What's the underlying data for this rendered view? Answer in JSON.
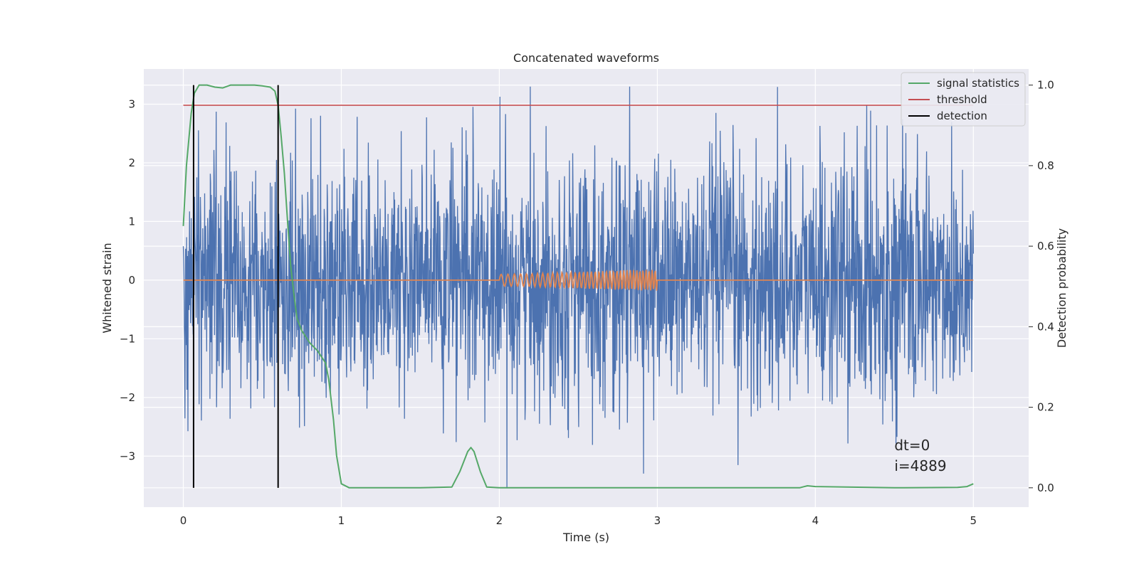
{
  "chart_data": {
    "type": "line",
    "title": "Concatenated waveforms",
    "xlabel": "Time (s)",
    "ylabel": "Whitened strain",
    "y2label": "Detection probability",
    "xlim": [
      -0.25,
      5.35
    ],
    "ylim": [
      -3.87,
      3.6
    ],
    "y2lim": [
      -0.048,
      1.04
    ],
    "xticks": [
      0,
      1,
      2,
      3,
      4,
      5
    ],
    "yticks": [
      -3,
      -2,
      -1,
      0,
      1,
      2,
      3
    ],
    "y2ticks": [
      0.0,
      0.2,
      0.4,
      0.6,
      0.8,
      1.0
    ],
    "xtick_labels": [
      "0",
      "1",
      "2",
      "3",
      "4",
      "5"
    ],
    "ytick_labels": [
      "−3",
      "−2",
      "−1",
      "0",
      "1",
      "2",
      "3"
    ],
    "y2tick_labels": [
      "0.0",
      "0.2",
      "0.4",
      "0.6",
      "0.8",
      "1.0"
    ],
    "grid": true,
    "legend_position": "top-right",
    "legend": [
      {
        "label": "signal statistics",
        "color": "#55a868"
      },
      {
        "label": "threshold",
        "color": "#c44e52"
      },
      {
        "label": "detection",
        "color": "#000000"
      }
    ],
    "series": [
      {
        "key": "noise",
        "axis": "left",
        "color": "#4c72b0",
        "x_range": [
          0,
          5
        ],
        "amplitude_range": [
          -3.55,
          3.3
        ]
      },
      {
        "key": "injection",
        "axis": "left",
        "color": "#dd8452",
        "x": [
          0,
          2,
          2.2,
          2.4,
          2.6,
          2.8,
          3,
          5
        ],
        "amplitude": [
          0,
          0.1,
          0.11,
          0.13,
          0.15,
          0.17,
          0.18,
          0
        ]
      },
      {
        "key": "signal_statistics",
        "axis": "right",
        "color": "#55a868",
        "x": [
          0,
          0.02,
          0.05,
          0.07,
          0.1,
          0.15,
          0.2,
          0.25,
          0.3,
          0.35,
          0.4,
          0.45,
          0.5,
          0.55,
          0.58,
          0.6,
          0.62,
          0.64,
          0.66,
          0.68,
          0.7,
          0.72,
          0.75,
          0.8,
          0.85,
          0.9,
          0.92,
          0.95,
          0.97,
          1.0,
          1.05,
          1.1,
          1.5,
          1.7,
          1.75,
          1.8,
          1.82,
          1.84,
          1.88,
          1.92,
          2.0,
          3.0,
          3.9,
          3.95,
          4.0,
          4.5,
          4.9,
          4.96,
          5.0
        ],
        "values": [
          0.65,
          0.8,
          0.93,
          0.98,
          1.0,
          1.0,
          0.995,
          0.993,
          1.0,
          1.0,
          1.0,
          1.0,
          0.998,
          0.995,
          0.985,
          0.95,
          0.87,
          0.78,
          0.66,
          0.55,
          0.48,
          0.42,
          0.39,
          0.36,
          0.34,
          0.31,
          0.27,
          0.17,
          0.08,
          0.01,
          0.0,
          0.0,
          0.0,
          0.002,
          0.04,
          0.09,
          0.1,
          0.09,
          0.04,
          0.002,
          0.0,
          0.0,
          0.0,
          0.005,
          0.003,
          0.0,
          0.001,
          0.003,
          0.01
        ]
      },
      {
        "key": "threshold",
        "axis": "right",
        "color": "#c44e52",
        "x": [
          0,
          5
        ],
        "values": [
          0.95,
          0.95
        ]
      },
      {
        "key": "detections",
        "axis": "right",
        "color": "#000000",
        "x": [
          0.065,
          0.6
        ],
        "y_range": [
          0,
          1.0
        ]
      }
    ],
    "annotations": [
      {
        "key": "dt",
        "text": "dt=0",
        "x": 4.5,
        "y": -2.9
      },
      {
        "key": "i",
        "text": "i=4889",
        "x": 4.5,
        "y": -3.25
      }
    ],
    "colors": {
      "plot_bg": "#eaeaf2",
      "grid": "#ffffff",
      "legend_bg": "#eaeaf2",
      "legend_border": "#cccccc"
    }
  }
}
